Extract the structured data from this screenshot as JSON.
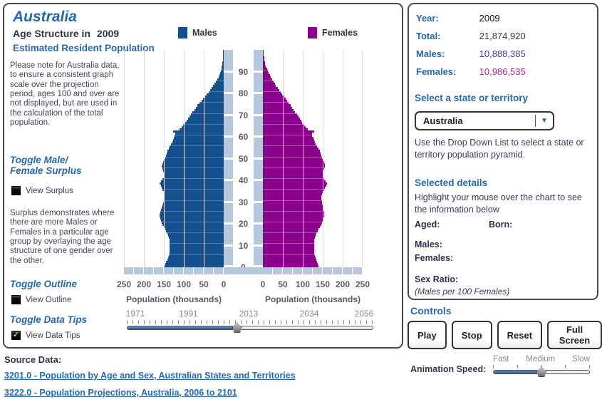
{
  "header": {
    "title": "Australia",
    "subtitle": "Age Structure in",
    "year": "2009",
    "legend": {
      "males": "Males",
      "females": "Females"
    },
    "section": "Estimated Resident Population"
  },
  "sidebar": {
    "note": "Please note for Australia data, to ensure a consistent graph scale over the projection period, ages 100 and over are not displayed, but are used in the calculation of the total population.",
    "toggle_surplus": "Toggle Male/ Female Surplus",
    "view_surplus": "View Surplus",
    "surplus_text": "Surplus demonstrates where there are more Males or Females in a particular age group by overlaying the age structure of one gender over the other.",
    "toggle_outline": "Toggle Outline",
    "view_outline": "View Outline",
    "toggle_datatips": "Toggle Data Tips",
    "view_datatips": "View Data Tips"
  },
  "icons": {
    "checkmark": "✓",
    "dropdown_arrow": "▼"
  },
  "chart_data": {
    "type": "bar",
    "subtype": "population-pyramid",
    "title": "Australia Age Structure in 2009",
    "xlabel": "Population (thousands)",
    "xmax": 250,
    "xticks_left": [
      "250",
      "200",
      "150",
      "100",
      "50",
      "0"
    ],
    "xticks_right": [
      "0",
      "50",
      "100",
      "150",
      "200",
      "250"
    ],
    "age_ticks": [
      0,
      10,
      20,
      30,
      40,
      50,
      60,
      70,
      80,
      90
    ],
    "ages": "0-99 single years, bottom to top",
    "series": [
      {
        "name": "Males",
        "color": "#14508e",
        "values": [
          148,
          146,
          144,
          141,
          139,
          137,
          136,
          135,
          135,
          135,
          136,
          136,
          136,
          137,
          139,
          141,
          144,
          147,
          150,
          153,
          156,
          158,
          159,
          160,
          160,
          159,
          158,
          156,
          154,
          152,
          150,
          149,
          148,
          149,
          150,
          153,
          156,
          158,
          160,
          157,
          153,
          150,
          149,
          150,
          151,
          153,
          155,
          154,
          152,
          150,
          147,
          145,
          143,
          141,
          138,
          135,
          132,
          129,
          127,
          125,
          123,
          122,
          127,
          111,
          105,
          101,
          97,
          93,
          89,
          86,
          82,
          78,
          74,
          70,
          66,
          61,
          56,
          51,
          47,
          43,
          38,
          34,
          30,
          26,
          23,
          19,
          16,
          13,
          11,
          9,
          7,
          6,
          5,
          4,
          3,
          2,
          2,
          1,
          1,
          1
        ]
      },
      {
        "name": "Females",
        "color": "#8b018b",
        "values": [
          140,
          138,
          136,
          134,
          132,
          130,
          129,
          128,
          128,
          128,
          129,
          129,
          129,
          130,
          132,
          134,
          137,
          140,
          143,
          146,
          149,
          151,
          152,
          153,
          154,
          153,
          152,
          151,
          150,
          149,
          148,
          147,
          147,
          148,
          150,
          153,
          156,
          159,
          161,
          158,
          154,
          151,
          150,
          151,
          152,
          154,
          156,
          155,
          153,
          151,
          148,
          146,
          144,
          142,
          139,
          136,
          133,
          130,
          128,
          126,
          124,
          123,
          128,
          112,
          107,
          103,
          99,
          96,
          92,
          89,
          85,
          81,
          77,
          73,
          69,
          65,
          61,
          57,
          53,
          49,
          45,
          41,
          37,
          33,
          30,
          26,
          23,
          20,
          17,
          14,
          12,
          10,
          8,
          6,
          5,
          4,
          3,
          2,
          2,
          1
        ]
      }
    ],
    "timeline": {
      "min": 1971,
      "max": 2056,
      "current": 2009
    }
  },
  "stats": {
    "year_label": "Year:",
    "year": "2009",
    "total_label": "Total:",
    "total": "21,874,920",
    "males_label": "Males:",
    "males": "10,888,385",
    "females_label": "Females:",
    "females": "10,986,535"
  },
  "selector": {
    "heading": "Select a state or territory",
    "selected": "Australia",
    "help": "Use the Drop Down List to select a state or territory population pyramid."
  },
  "details": {
    "heading": "Selected details",
    "help": "Highlight your mouse over the chart to see the information below",
    "aged_label": "Aged:",
    "born_label": "Born:",
    "males_label": "Males:",
    "females_label": "Females:",
    "sex_ratio_label": "Sex Ratio:",
    "sex_ratio_note": "(Males per 100 Females)"
  },
  "controls": {
    "heading": "Controls",
    "buttons": [
      "Play",
      "Stop",
      "Reset",
      "Full Screen"
    ]
  },
  "timeline": {
    "labels": [
      "1971",
      "1991",
      "2013",
      "2034",
      "2056"
    ],
    "position_pct": 44.7
  },
  "speed": {
    "label": "Animation Speed:",
    "labels": [
      "Fast",
      "Medium",
      "Slow"
    ],
    "position_pct": 50
  },
  "source": {
    "heading": "Source Data:",
    "links": [
      "3201.0 - Population by Age and Sex, Australian States and Territories",
      "3222.0 - Population Projections, Australia, 2006 to 2101"
    ]
  },
  "colors": {
    "male": "#14508e",
    "female": "#8b018b",
    "accent": "#2569ac",
    "axis_strip": "#b7c7dc"
  }
}
